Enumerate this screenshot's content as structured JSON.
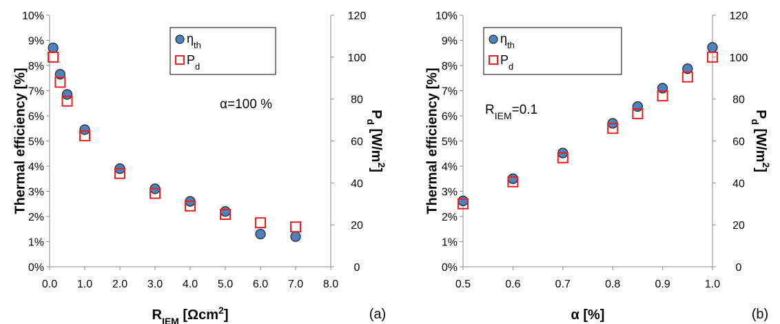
{
  "chart_data": [
    {
      "type": "scatter",
      "panel_label": "(a)",
      "annotation": "α=100 %",
      "xlabel": {
        "main": "R",
        "sub": "IEM",
        "rest": " [Ωcm",
        "sup": "2",
        "end": "]"
      },
      "ylabel": "Thermal efficiency [%]",
      "y2label": {
        "main": "P",
        "sub": "d",
        "rest": " [W/m",
        "sup": "2",
        "end": "]"
      },
      "xlim": [
        0,
        8
      ],
      "xticks": [
        "0.0",
        "1.0",
        "2.0",
        "3.0",
        "4.0",
        "5.0",
        "6.0",
        "7.0",
        "8.0"
      ],
      "ylim": [
        0,
        10
      ],
      "yticks": [
        "0%",
        "1%",
        "2%",
        "3%",
        "4%",
        "5%",
        "6%",
        "7%",
        "8%",
        "9%",
        "10%"
      ],
      "y2lim": [
        0,
        120
      ],
      "y2ticks": [
        "0",
        "20",
        "40",
        "60",
        "80",
        "100",
        "120"
      ],
      "legend": {
        "position": "top-right",
        "entries": [
          {
            "main": "η",
            "sub": "th"
          },
          {
            "main": "P",
            "sub": "d"
          }
        ]
      },
      "colors": {
        "eta": "#4f81bd",
        "pd": "#ee1c1c"
      },
      "series": [
        {
          "name": "ηth",
          "axis": "left",
          "x": [
            0.1,
            0.3,
            0.5,
            1.0,
            2.0,
            3.0,
            4.0,
            5.0,
            6.0,
            7.0
          ],
          "values": [
            8.7,
            7.65,
            6.85,
            5.45,
            3.9,
            3.1,
            2.6,
            2.2,
            1.3,
            1.2
          ]
        },
        {
          "name": "Pd",
          "axis": "right",
          "x": [
            0.1,
            0.3,
            0.5,
            1.0,
            2.0,
            3.0,
            4.0,
            5.0,
            6.0,
            7.0
          ],
          "values": [
            100,
            88,
            79,
            62.5,
            44.5,
            35,
            29,
            25,
            21,
            19
          ]
        }
      ]
    },
    {
      "type": "scatter",
      "panel_label": "(b)",
      "annotation": {
        "main": "R",
        "sub": "IEM",
        "rest": "=0.1"
      },
      "xlabel": {
        "main": "α [%]"
      },
      "ylabel": "Thermal efficiency [%]",
      "y2label": {
        "main": "P",
        "sub": "d",
        "rest": " [W/m",
        "sup": "2",
        "end": "]"
      },
      "xlim": [
        0.5,
        1.0
      ],
      "xticks": [
        "0.5",
        "0.6",
        "0.7",
        "0.8",
        "0.9",
        "1.0"
      ],
      "ylim": [
        0,
        10
      ],
      "yticks": [
        "0%",
        "1%",
        "2%",
        "3%",
        "4%",
        "5%",
        "6%",
        "7%",
        "8%",
        "9%",
        "10%"
      ],
      "y2lim": [
        0,
        120
      ],
      "y2ticks": [
        "0",
        "20",
        "40",
        "60",
        "80",
        "100",
        "120"
      ],
      "legend": {
        "position": "top-left",
        "entries": [
          {
            "main": "η",
            "sub": "th"
          },
          {
            "main": "P",
            "sub": "d"
          }
        ]
      },
      "colors": {
        "eta": "#4f81bd",
        "pd": "#ee1c1c"
      },
      "series": [
        {
          "name": "ηth",
          "axis": "left",
          "x": [
            0.5,
            0.6,
            0.7,
            0.8,
            0.85,
            0.9,
            0.95,
            1.0
          ],
          "values": [
            2.62,
            3.5,
            4.52,
            5.7,
            6.37,
            7.1,
            7.87,
            8.72
          ]
        },
        {
          "name": "Pd",
          "axis": "right",
          "x": [
            0.5,
            0.6,
            0.7,
            0.8,
            0.85,
            0.9,
            0.95,
            1.0
          ],
          "values": [
            30,
            40.5,
            52,
            66,
            73,
            81.5,
            90.5,
            100
          ]
        }
      ]
    }
  ]
}
